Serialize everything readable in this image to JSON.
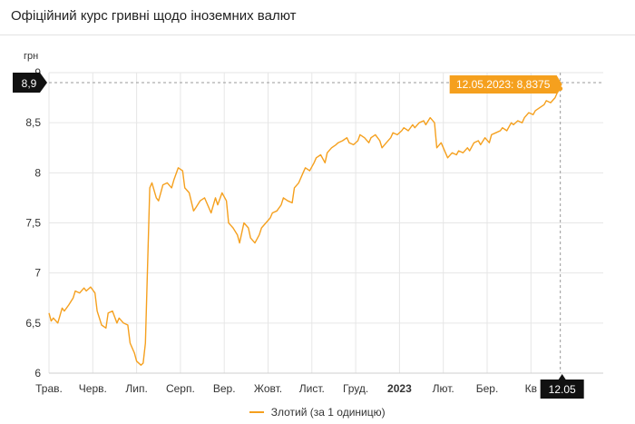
{
  "header": {
    "title": "Офіційний курс гривні щодо іноземних валют"
  },
  "colors": {
    "series": "#f5a01e",
    "tooltip": "#f5a01e",
    "axis_badge": "#111111",
    "grid": "#e6e6e6"
  },
  "chart_data": {
    "type": "line",
    "title": "Офіційний курс гривні щодо іноземних валют",
    "ylabel": "грн",
    "ylim": [
      6,
      9
    ],
    "yticks": [
      6,
      6.5,
      7,
      7.5,
      8,
      8.5,
      9
    ],
    "ytick_labels": [
      "6",
      "6,5",
      "7",
      "7,5",
      "8",
      "8,5",
      "9"
    ],
    "xlim": [
      0,
      12.65
    ],
    "xticks": [
      {
        "pos": 0,
        "label": "Трав.",
        "bold": false
      },
      {
        "pos": 1,
        "label": "Черв.",
        "bold": false
      },
      {
        "pos": 2,
        "label": "Лип.",
        "bold": false
      },
      {
        "pos": 3,
        "label": "Серп.",
        "bold": false
      },
      {
        "pos": 4,
        "label": "Вер.",
        "bold": false
      },
      {
        "pos": 5,
        "label": "Жовт.",
        "bold": false
      },
      {
        "pos": 6,
        "label": "Лист.",
        "bold": false
      },
      {
        "pos": 7,
        "label": "Груд.",
        "bold": false
      },
      {
        "pos": 8,
        "label": "2023",
        "bold": true
      },
      {
        "pos": 9,
        "label": "Лют.",
        "bold": false
      },
      {
        "pos": 10,
        "label": "Бер.",
        "bold": false
      },
      {
        "pos": 11,
        "label": "Кв",
        "bold": false
      }
    ],
    "grid": true,
    "legend_position": "bottom-center",
    "series": [
      {
        "name": "Злотий (за 1 одиницю)",
        "x": [
          0.0,
          0.05,
          0.1,
          0.2,
          0.3,
          0.35,
          0.45,
          0.55,
          0.6,
          0.7,
          0.8,
          0.85,
          0.95,
          1.05,
          1.1,
          1.2,
          1.3,
          1.35,
          1.45,
          1.55,
          1.6,
          1.7,
          1.8,
          1.85,
          1.95,
          2.0,
          2.1,
          2.15,
          2.2,
          2.3,
          2.35,
          2.45,
          2.5,
          2.55,
          2.6,
          2.7,
          2.8,
          2.85,
          2.95,
          3.05,
          3.1,
          3.2,
          3.3,
          3.35,
          3.45,
          3.55,
          3.6,
          3.7,
          3.8,
          3.85,
          3.95,
          4.05,
          4.1,
          4.2,
          4.3,
          4.35,
          4.45,
          4.55,
          4.6,
          4.7,
          4.8,
          4.85,
          4.95,
          5.05,
          5.1,
          5.2,
          5.3,
          5.35,
          5.45,
          5.55,
          5.6,
          5.7,
          5.8,
          5.85,
          5.95,
          6.05,
          6.1,
          6.2,
          6.3,
          6.35,
          6.45,
          6.55,
          6.6,
          6.7,
          6.8,
          6.85,
          6.95,
          7.05,
          7.1,
          7.2,
          7.3,
          7.35,
          7.45,
          7.55,
          7.6,
          7.7,
          7.8,
          7.85,
          7.95,
          8.05,
          8.1,
          8.2,
          8.3,
          8.35,
          8.45,
          8.55,
          8.6,
          8.7,
          8.8,
          8.85,
          8.95,
          9.05,
          9.1,
          9.2,
          9.3,
          9.35,
          9.45,
          9.55,
          9.6,
          9.7,
          9.8,
          9.85,
          9.95,
          10.05,
          10.1,
          10.2,
          10.3,
          10.35,
          10.45,
          10.55,
          10.6,
          10.7,
          10.8,
          10.85,
          10.95,
          11.05,
          11.1,
          11.2,
          11.3,
          11.35,
          11.45,
          11.55,
          11.6,
          11.67
        ],
        "values": [
          6.6,
          6.52,
          6.55,
          6.5,
          6.65,
          6.62,
          6.68,
          6.75,
          6.82,
          6.8,
          6.85,
          6.82,
          6.86,
          6.8,
          6.62,
          6.48,
          6.45,
          6.6,
          6.62,
          6.5,
          6.55,
          6.5,
          6.48,
          6.3,
          6.2,
          6.12,
          6.08,
          6.1,
          6.3,
          7.85,
          7.9,
          7.75,
          7.72,
          7.8,
          7.88,
          7.9,
          7.85,
          7.93,
          8.05,
          8.02,
          7.85,
          7.8,
          7.62,
          7.65,
          7.72,
          7.75,
          7.7,
          7.6,
          7.75,
          7.68,
          7.8,
          7.72,
          7.5,
          7.45,
          7.38,
          7.3,
          7.5,
          7.45,
          7.35,
          7.3,
          7.38,
          7.45,
          7.5,
          7.55,
          7.6,
          7.62,
          7.68,
          7.75,
          7.72,
          7.7,
          7.85,
          7.9,
          8.0,
          8.05,
          8.02,
          8.1,
          8.15,
          8.18,
          8.1,
          8.2,
          8.25,
          8.28,
          8.3,
          8.32,
          8.35,
          8.3,
          8.28,
          8.32,
          8.38,
          8.35,
          8.3,
          8.35,
          8.38,
          8.32,
          8.25,
          8.3,
          8.35,
          8.4,
          8.38,
          8.42,
          8.45,
          8.42,
          8.48,
          8.45,
          8.5,
          8.52,
          8.48,
          8.55,
          8.5,
          8.25,
          8.3,
          8.2,
          8.15,
          8.2,
          8.18,
          8.22,
          8.2,
          8.25,
          8.22,
          8.3,
          8.32,
          8.28,
          8.35,
          8.3,
          8.38,
          8.4,
          8.42,
          8.45,
          8.42,
          8.5,
          8.48,
          8.52,
          8.5,
          8.55,
          8.6,
          8.58,
          8.62,
          8.65,
          8.68,
          8.72,
          8.7,
          8.75,
          8.8,
          8.84
        ]
      }
    ],
    "crosshair": {
      "y_label": "8,9",
      "x_label": "12.05"
    },
    "tooltip": {
      "label": "12.05.2023: 8,8375"
    }
  }
}
